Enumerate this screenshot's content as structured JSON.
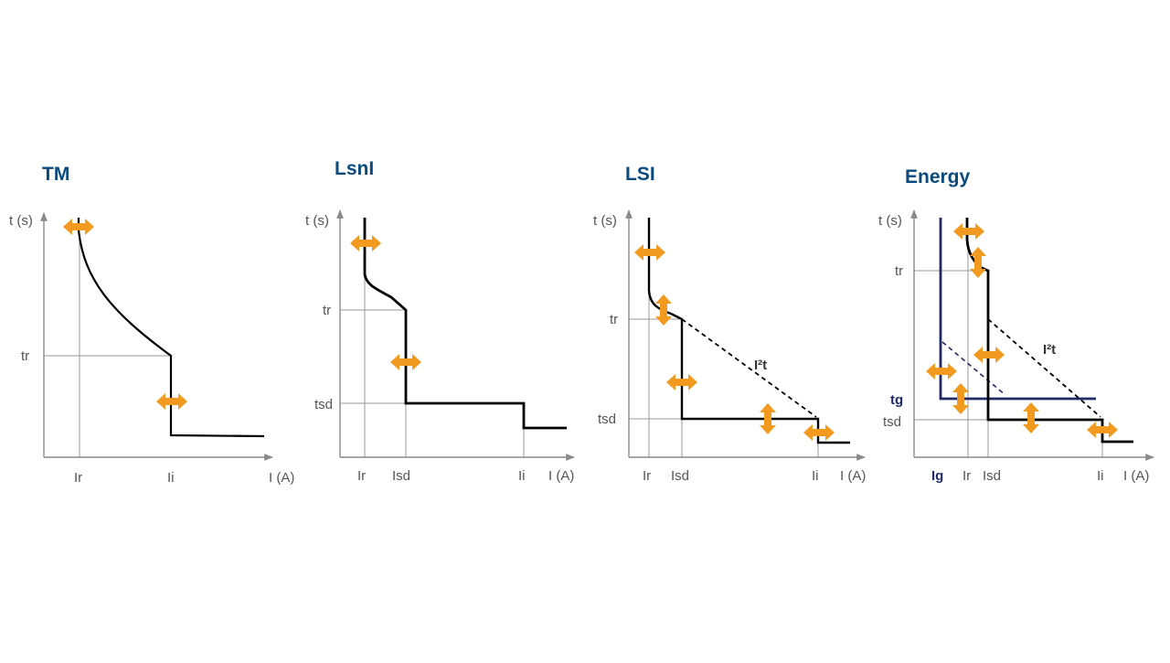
{
  "colors": {
    "title": "#0b4a7d",
    "axis": "#8a8a8a",
    "grid": "#9a9a9a",
    "curve": "#000000",
    "ground": "#1f2a66",
    "arrow": "#f29a1f",
    "label": "#555555"
  },
  "icons": {
    "horizontal_arrow": "double-arrow-horizontal-icon",
    "vertical_arrow": "double-arrow-vertical-icon"
  },
  "panels": [
    {
      "title": "TM",
      "y_axis_label": "t (s)",
      "x_axis_label": "I (A)",
      "y_ticks": [
        "tr"
      ],
      "x_ticks": [
        "Ir",
        "Ii"
      ]
    },
    {
      "title": "LsnI",
      "y_axis_label": "t (s)",
      "x_axis_label": "I (A)",
      "y_ticks": [
        "tr",
        "tsd"
      ],
      "x_ticks": [
        "Ir",
        "Isd",
        "Ii"
      ]
    },
    {
      "title": "LSI",
      "y_axis_label": "t (s)",
      "x_axis_label": "I (A)",
      "y_ticks": [
        "tr",
        "tsd"
      ],
      "x_ticks": [
        "Ir",
        "Isd",
        "Ii"
      ],
      "annotation": "I²t"
    },
    {
      "title": "Energy",
      "y_axis_label": "t (s)",
      "x_axis_label": "I (A)",
      "y_ticks": [
        "tr",
        "tg",
        "tsd"
      ],
      "x_ticks": [
        "Ig",
        "Ir",
        "Isd",
        "Ii"
      ],
      "annotation": "I²t"
    }
  ]
}
